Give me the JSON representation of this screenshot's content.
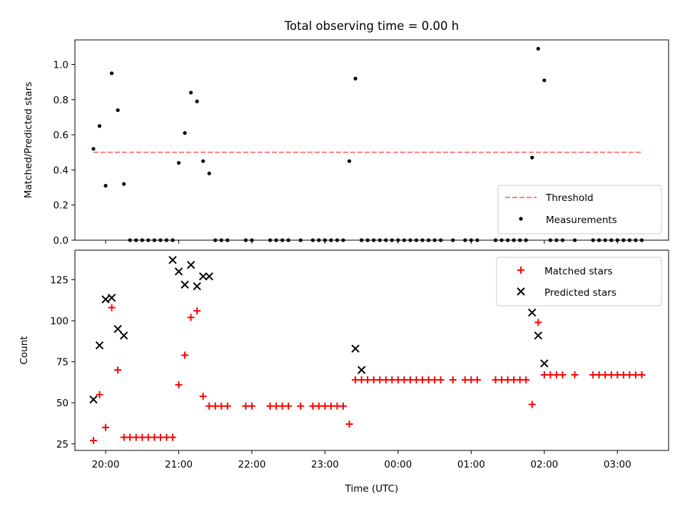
{
  "chart_data": [
    {
      "type": "scatter",
      "title": "Total observing time = 0.00 h",
      "ylabel": "Matched/Predicted stars",
      "ylim": [
        0,
        1.14
      ],
      "yticks": [
        0.0,
        0.2,
        0.4,
        0.6,
        0.8,
        1.0
      ],
      "ytick_labels": [
        "0.0",
        "0.2",
        "0.4",
        "0.6",
        "0.8",
        "1.0"
      ],
      "xlim_hours": [
        19.58,
        3.7
      ],
      "threshold": {
        "name": "Threshold",
        "value": 0.5,
        "x_start": 19.83,
        "x_end": 3.35,
        "color": "#ff7f7f"
      },
      "legend_placement": "lower-right",
      "series": [
        {
          "name": "Measurements",
          "color": "#000000",
          "marker": "dot",
          "x": [
            "19:50",
            "19:55",
            "20:00",
            "20:05",
            "20:10",
            "20:15",
            "20:20",
            "20:25",
            "20:30",
            "20:35",
            "20:40",
            "20:45",
            "20:50",
            "20:55",
            "21:00",
            "21:05",
            "21:10",
            "21:15",
            "21:20",
            "21:25",
            "21:30",
            "21:35",
            "21:40",
            "21:55",
            "22:00",
            "22:15",
            "22:20",
            "22:25",
            "22:30",
            "22:40",
            "22:50",
            "22:55",
            "23:00",
            "23:05",
            "23:10",
            "23:15",
            "23:20",
            "23:25",
            "23:30",
            "23:35",
            "23:40",
            "23:45",
            "23:50",
            "23:55",
            "00:00",
            "00:05",
            "00:10",
            "00:15",
            "00:20",
            "00:25",
            "00:30",
            "00:35",
            "00:45",
            "00:55",
            "01:00",
            "01:05",
            "01:20",
            "01:25",
            "01:30",
            "01:35",
            "01:40",
            "01:45",
            "01:50",
            "01:55",
            "02:00",
            "02:05",
            "02:10",
            "02:15",
            "02:25",
            "02:40",
            "02:45",
            "02:50",
            "02:55",
            "03:00",
            "03:05",
            "03:10",
            "03:15",
            "03:20"
          ],
          "y": [
            0.52,
            0.65,
            0.31,
            0.95,
            0.74,
            0.32,
            0,
            0,
            0,
            0,
            0,
            0,
            0,
            0,
            0.44,
            0.61,
            0.84,
            0.79,
            0.45,
            0.38,
            0,
            0,
            0,
            0,
            0,
            0,
            0,
            0,
            0,
            0,
            0,
            0,
            0,
            0,
            0,
            0,
            0.45,
            0.92,
            0,
            0,
            0,
            0,
            0,
            0,
            0,
            0,
            0,
            0,
            0,
            0,
            0,
            0,
            0,
            0,
            0,
            0,
            0,
            0,
            0,
            0,
            0,
            0,
            0.47,
            1.09,
            0.91,
            0,
            0,
            0,
            0,
            0,
            0,
            0,
            0,
            0,
            0,
            0,
            0,
            0
          ]
        }
      ]
    },
    {
      "type": "scatter",
      "xlabel": "Time (UTC)",
      "ylabel": "Count",
      "ylim": [
        21,
        143
      ],
      "yticks": [
        25,
        50,
        75,
        100,
        125
      ],
      "ytick_labels": [
        "25",
        "50",
        "75",
        "100",
        "125"
      ],
      "xlim_hours": [
        19.58,
        3.7
      ],
      "xticks": [
        "20:00",
        "21:00",
        "22:00",
        "23:00",
        "00:00",
        "01:00",
        "02:00",
        "03:00"
      ],
      "legend_placement": "upper-right",
      "series": [
        {
          "name": "Matched stars",
          "color": "#ff0000",
          "marker": "plus",
          "x": [
            "19:50",
            "19:55",
            "20:00",
            "20:05",
            "20:10",
            "20:15",
            "20:20",
            "20:25",
            "20:30",
            "20:35",
            "20:40",
            "20:45",
            "20:50",
            "20:55",
            "21:00",
            "21:05",
            "21:10",
            "21:15",
            "21:20",
            "21:25",
            "21:30",
            "21:35",
            "21:40",
            "21:55",
            "22:00",
            "22:15",
            "22:20",
            "22:25",
            "22:30",
            "22:40",
            "22:50",
            "22:55",
            "23:00",
            "23:05",
            "23:10",
            "23:15",
            "23:20",
            "23:25",
            "23:30",
            "23:35",
            "23:40",
            "23:45",
            "23:50",
            "23:55",
            "00:00",
            "00:05",
            "00:10",
            "00:15",
            "00:20",
            "00:25",
            "00:30",
            "00:35",
            "00:45",
            "00:55",
            "01:00",
            "01:05",
            "01:20",
            "01:25",
            "01:30",
            "01:35",
            "01:40",
            "01:45",
            "01:50",
            "01:55",
            "02:00",
            "02:05",
            "02:10",
            "02:15",
            "02:25",
            "02:40",
            "02:45",
            "02:50",
            "02:55",
            "03:00",
            "03:05",
            "03:10",
            "03:15",
            "03:20"
          ],
          "y": [
            27,
            55,
            35,
            108,
            70,
            29,
            29,
            29,
            29,
            29,
            29,
            29,
            29,
            29,
            61,
            79,
            102,
            106,
            54,
            48,
            48,
            48,
            48,
            48,
            48,
            48,
            48,
            48,
            48,
            48,
            48,
            48,
            48,
            48,
            48,
            48,
            37,
            64,
            64,
            64,
            64,
            64,
            64,
            64,
            64,
            64,
            64,
            64,
            64,
            64,
            64,
            64,
            64,
            64,
            64,
            64,
            64,
            64,
            64,
            64,
            64,
            64,
            49,
            99,
            67,
            67,
            67,
            67,
            67,
            67,
            67,
            67,
            67,
            67,
            67,
            67,
            67,
            67
          ]
        },
        {
          "name": "Predicted stars",
          "color": "#000000",
          "marker": "x",
          "x": [
            "19:50",
            "19:55",
            "20:00",
            "20:05",
            "20:10",
            "20:15",
            "20:55",
            "21:00",
            "21:05",
            "21:10",
            "21:15",
            "21:20",
            "21:25",
            "23:25",
            "23:30",
            "01:50",
            "01:55",
            "02:00"
          ],
          "y": [
            52,
            85,
            113,
            114,
            95,
            91,
            137,
            130,
            122,
            134,
            121,
            127,
            127,
            83,
            70,
            105,
            91,
            74
          ]
        }
      ]
    }
  ]
}
